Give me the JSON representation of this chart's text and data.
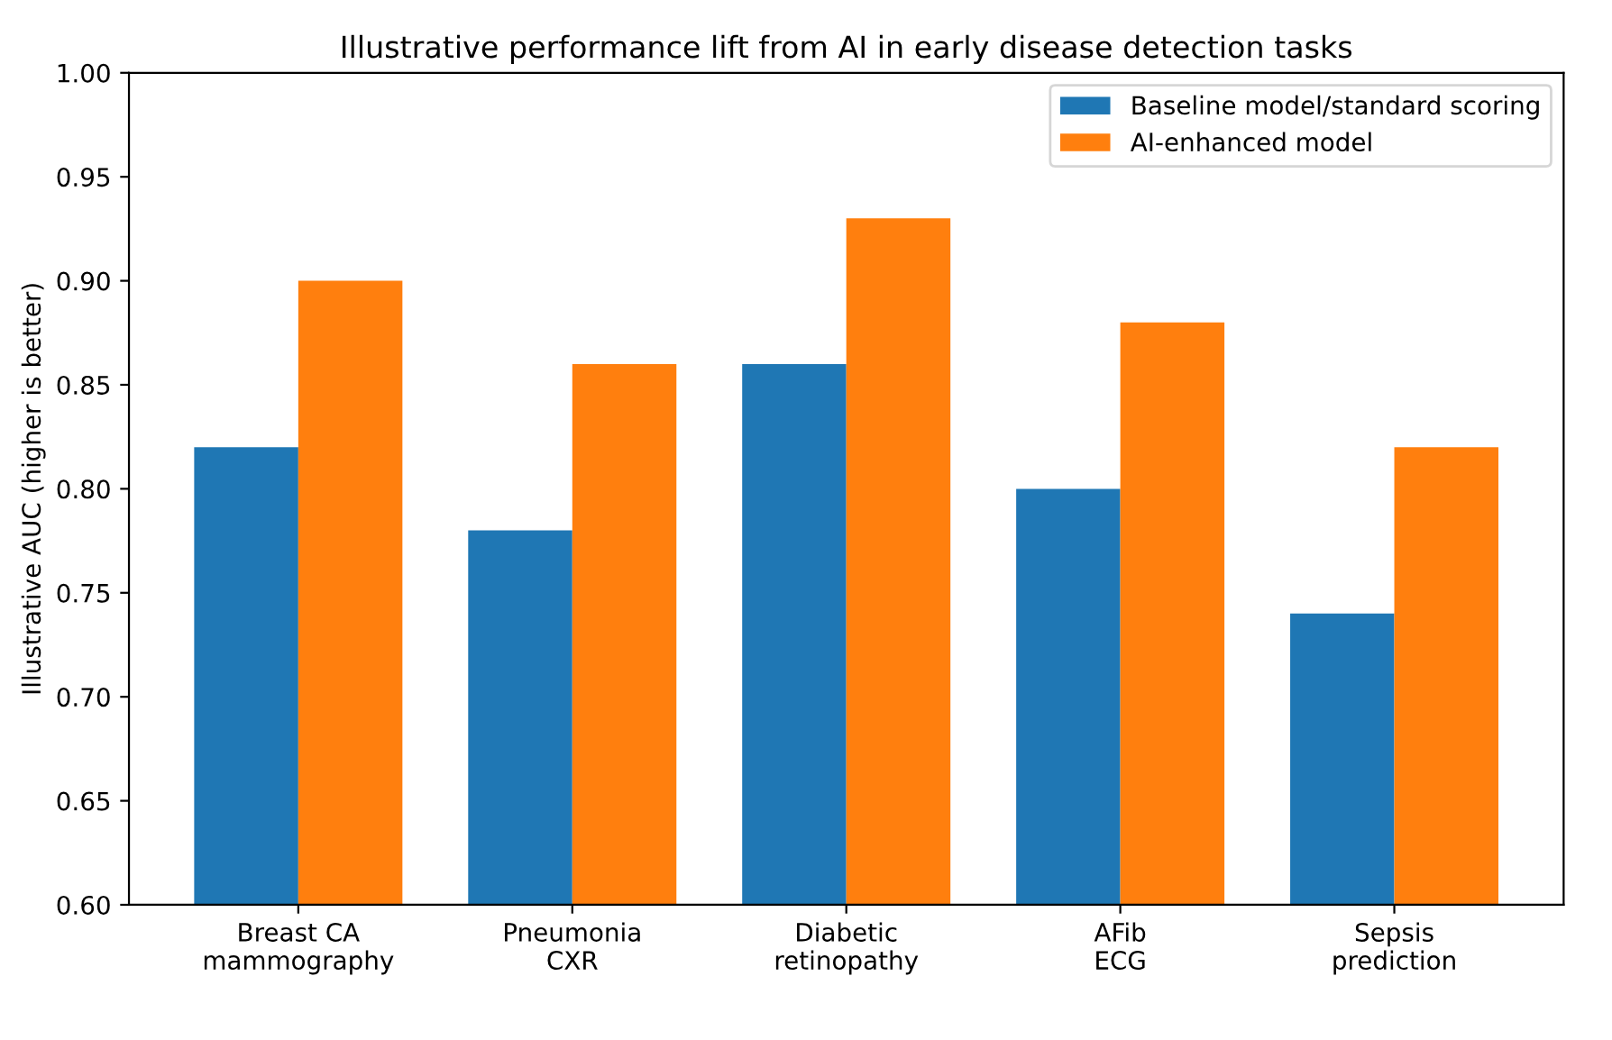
{
  "chart_data": {
    "type": "bar",
    "title": "Illustrative performance lift from AI in early disease detection tasks",
    "ylabel": "Illustrative AUC (higher is better)",
    "categories": [
      "Breast CA\nmammography",
      "Pneumonia\nCXR",
      "Diabetic\nretinopathy",
      "AFib\nECG",
      "Sepsis\nprediction"
    ],
    "series": [
      {
        "name": "Baseline model/standard scoring",
        "color": "#1f77b4",
        "values": [
          0.82,
          0.78,
          0.86,
          0.8,
          0.74
        ]
      },
      {
        "name": "AI-enhanced model",
        "color": "#ff7f0e",
        "values": [
          0.9,
          0.86,
          0.93,
          0.88,
          0.82
        ]
      }
    ],
    "ylim": [
      0.6,
      1.0
    ],
    "yticks": [
      {
        "value": 0.6,
        "label": "0.60"
      },
      {
        "value": 0.65,
        "label": "0.65"
      },
      {
        "value": 0.7,
        "label": "0.70"
      },
      {
        "value": 0.75,
        "label": "0.75"
      },
      {
        "value": 0.8,
        "label": "0.80"
      },
      {
        "value": 0.85,
        "label": "0.85"
      },
      {
        "value": 0.9,
        "label": "0.90"
      },
      {
        "value": 0.95,
        "label": "0.95"
      },
      {
        "value": 1.0,
        "label": "1.00"
      }
    ],
    "legend": "top right",
    "grid": false
  }
}
